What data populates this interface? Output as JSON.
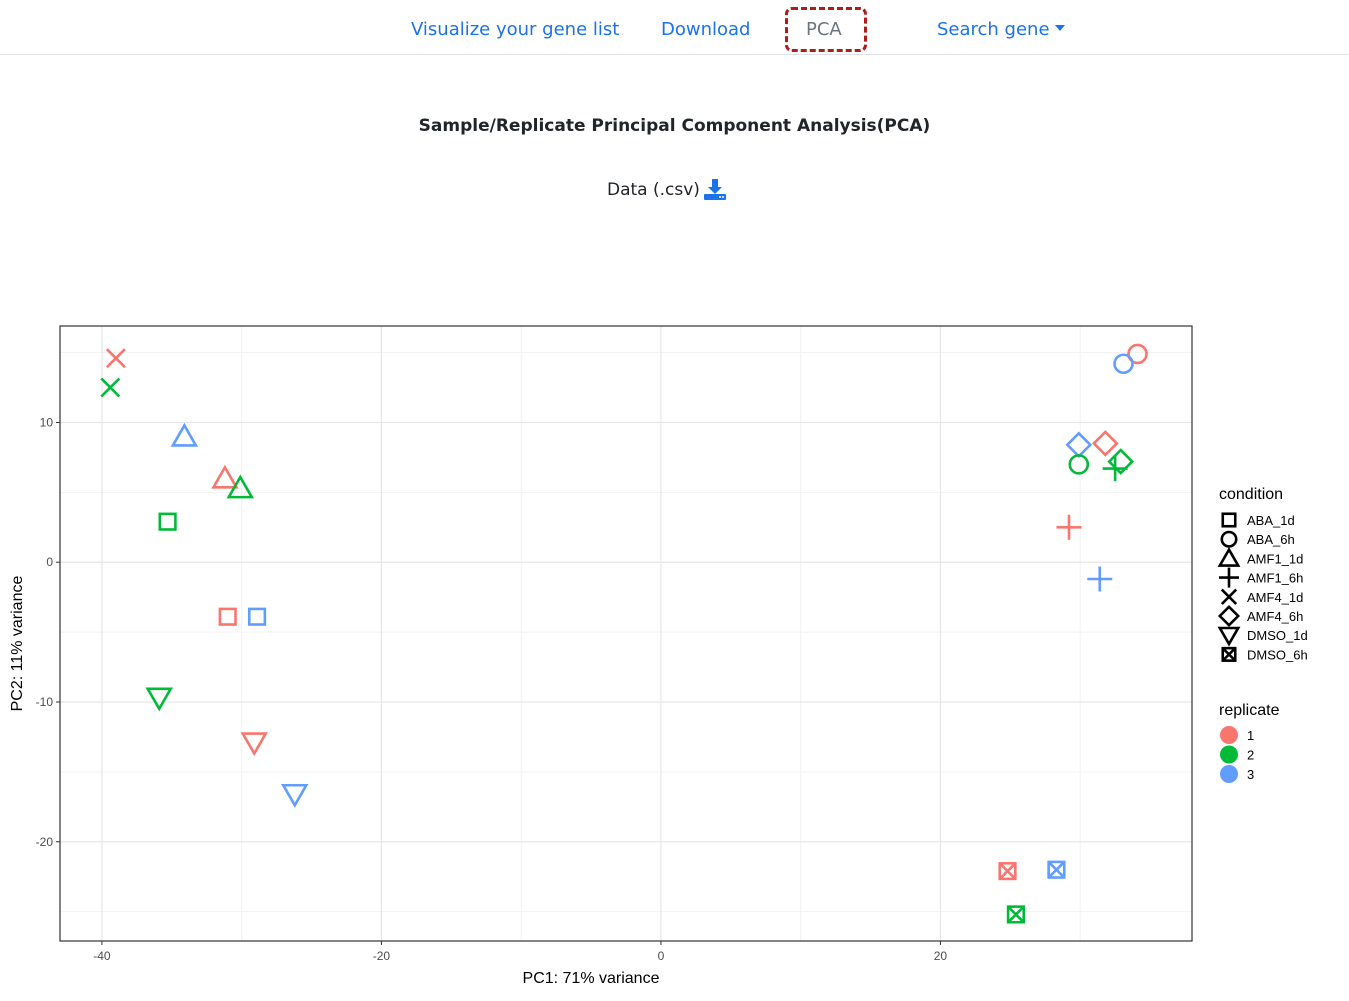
{
  "nav": {
    "items": [
      "Visualize your gene list",
      "Download",
      "PCA",
      "Search gene"
    ],
    "active": "PCA"
  },
  "page": {
    "title": "Sample/Replicate Principal Component Analysis(PCA)",
    "csv_label": "Data (.csv)"
  },
  "colors": {
    "link": "#1a73e8",
    "highlight": "#b01c1c"
  },
  "chart_data": {
    "type": "scatter",
    "xlabel": "PC1: 71% variance",
    "ylabel": "PC2: 11% variance",
    "xlim": [
      -43,
      38
    ],
    "ylim": [
      -27.1,
      16.9
    ],
    "xticks": [
      -40,
      -20,
      0,
      20
    ],
    "yticks": [
      -20,
      -10,
      0,
      10
    ],
    "grid": true,
    "legend_position": "right",
    "legend": {
      "condition_title": "condition",
      "conditions": [
        "ABA_1d",
        "ABA_6h",
        "AMF1_1d",
        "AMF1_6h",
        "AMF4_1d",
        "AMF4_6h",
        "DMSO_1d",
        "DMSO_6h"
      ],
      "condition_shapes": [
        "square",
        "circle",
        "triangle",
        "plus",
        "cross",
        "diamond",
        "triangle-down",
        "boxed-x"
      ],
      "replicate_title": "replicate",
      "replicates": [
        "1",
        "2",
        "3"
      ],
      "replicate_colors": [
        "#F8766D",
        "#00BA38",
        "#619CFF"
      ]
    },
    "points": [
      {
        "condition": "AMF4_1d",
        "replicate": "1",
        "x": -39.0,
        "y": 14.6
      },
      {
        "condition": "AMF4_1d",
        "replicate": "2",
        "x": -39.4,
        "y": 12.5
      },
      {
        "condition": "AMF1_1d",
        "replicate": "3",
        "x": -34.1,
        "y": 9.0
      },
      {
        "condition": "AMF1_1d",
        "replicate": "1",
        "x": -31.2,
        "y": 6.0
      },
      {
        "condition": "AMF1_1d",
        "replicate": "2",
        "x": -30.1,
        "y": 5.3
      },
      {
        "condition": "ABA_1d",
        "replicate": "2",
        "x": -35.3,
        "y": 2.9
      },
      {
        "condition": "ABA_1d",
        "replicate": "1",
        "x": -31.0,
        "y": -3.9
      },
      {
        "condition": "ABA_1d",
        "replicate": "3",
        "x": -28.9,
        "y": -3.9
      },
      {
        "condition": "DMSO_1d",
        "replicate": "2",
        "x": -35.9,
        "y": -9.7
      },
      {
        "condition": "DMSO_1d",
        "replicate": "1",
        "x": -29.1,
        "y": -12.9
      },
      {
        "condition": "DMSO_1d",
        "replicate": "3",
        "x": -26.2,
        "y": -16.6
      },
      {
        "condition": "ABA_6h",
        "replicate": "1",
        "x": 34.1,
        "y": 14.9
      },
      {
        "condition": "ABA_6h",
        "replicate": "3",
        "x": 33.1,
        "y": 14.2
      },
      {
        "condition": "AMF4_6h",
        "replicate": "3",
        "x": 29.9,
        "y": 8.4
      },
      {
        "condition": "AMF4_6h",
        "replicate": "1",
        "x": 31.8,
        "y": 8.5
      },
      {
        "condition": "ABA_6h",
        "replicate": "2",
        "x": 29.9,
        "y": 7.0
      },
      {
        "condition": "AMF4_6h",
        "replicate": "2",
        "x": 32.9,
        "y": 7.2
      },
      {
        "condition": "AMF1_6h",
        "replicate": "2",
        "x": 32.5,
        "y": 6.7
      },
      {
        "condition": "AMF1_6h",
        "replicate": "1",
        "x": 29.2,
        "y": 2.5
      },
      {
        "condition": "AMF1_6h",
        "replicate": "3",
        "x": 31.4,
        "y": -1.2
      },
      {
        "condition": "DMSO_6h",
        "replicate": "1",
        "x": 24.8,
        "y": -22.1
      },
      {
        "condition": "DMSO_6h",
        "replicate": "3",
        "x": 28.3,
        "y": -22.0
      },
      {
        "condition": "DMSO_6h",
        "replicate": "2",
        "x": 25.4,
        "y": -25.2
      }
    ]
  }
}
